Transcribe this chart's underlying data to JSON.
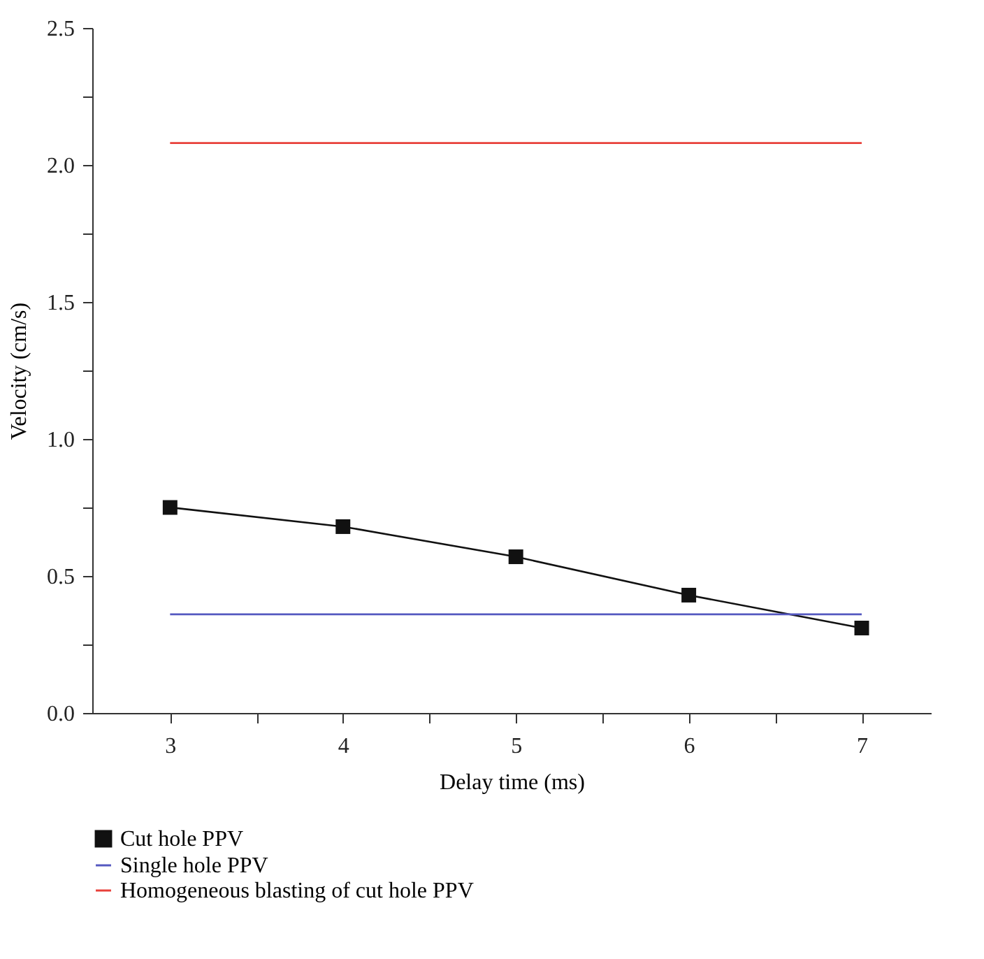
{
  "chart_data": {
    "type": "line",
    "xlabel": "Delay time (ms)",
    "ylabel": "Velocity (cm/s)",
    "x": [
      3,
      4,
      5,
      6,
      7
    ],
    "series": [
      {
        "name": "Cut hole PPV",
        "color": "#111111",
        "values": [
          0.75,
          0.68,
          0.57,
          0.43,
          0.31
        ],
        "marker": "square"
      },
      {
        "name": "Single hole PPV",
        "color": "#5558c0",
        "values": [
          0.36,
          0.36,
          0.36,
          0.36,
          0.36
        ],
        "marker": "none"
      },
      {
        "name": "Homogeneous blasting of cut hole PPV",
        "color": "#e8403a",
        "values": [
          2.08,
          2.08,
          2.08,
          2.08,
          2.08
        ],
        "marker": "none"
      }
    ],
    "xlim": [
      2.55,
      7.4
    ],
    "xticks": [
      3,
      {
        "value": 3.5,
        "label": null
      },
      4,
      {
        "value": 4.5,
        "label": null
      },
      5,
      {
        "value": 5.5,
        "label": null
      },
      6,
      {
        "value": 6.5,
        "label": null
      },
      7
    ],
    "ylim": [
      0,
      2.5
    ],
    "yticks": [
      "0.0",
      {
        "value": 0.25,
        "label": null
      },
      {
        "value": 0.5,
        "label": "0.5"
      },
      {
        "value": 0.75,
        "label": null
      },
      {
        "value": 1,
        "label": "1.0"
      },
      {
        "value": 1.25,
        "label": null
      },
      {
        "value": 1.5,
        "label": "1.5"
      },
      {
        "value": 1.75,
        "label": null
      },
      {
        "value": 2,
        "label": "2.0"
      },
      {
        "value": 2.25,
        "label": null
      },
      {
        "value": 2.5,
        "label": "2.5"
      }
    ],
    "grid": false,
    "legend": "bottom left",
    "line_style": "solid"
  }
}
